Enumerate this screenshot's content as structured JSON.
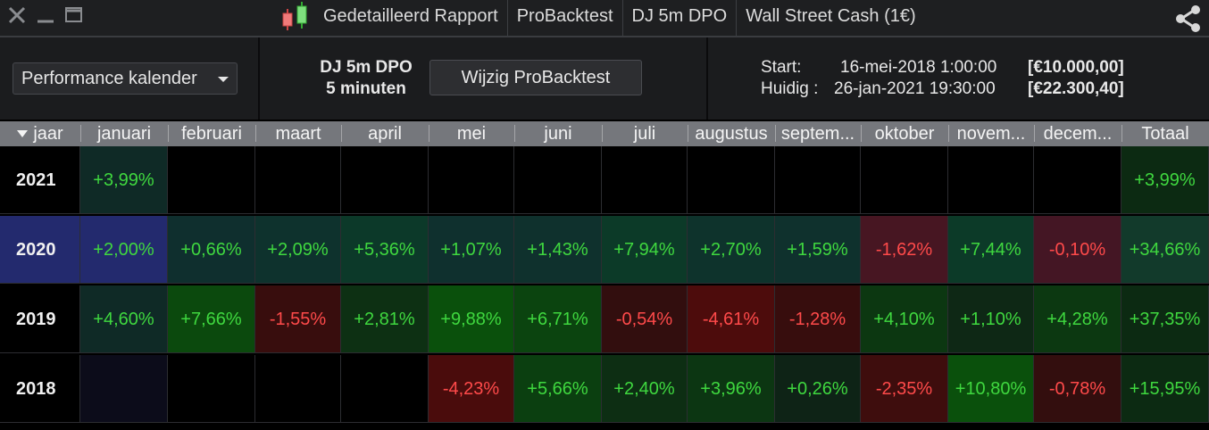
{
  "window": {
    "tabs": [
      "Gedetailleerd Rapport",
      "ProBacktest",
      "DJ 5m DPO",
      "Wall Street Cash (1€)"
    ]
  },
  "icons": {
    "close": "close-icon",
    "minimize": "minimize-icon",
    "maximize": "maximize-icon",
    "chart": "candlestick-icon",
    "share": "share-icon"
  },
  "toolbar": {
    "view_select": "Performance kalender",
    "strategy_name": "DJ 5m DPO",
    "timeframe": "5 minuten",
    "edit_button": "Wijzig ProBacktest",
    "start_label": "Start:",
    "start_date": "16-mei-2018 1:00:00",
    "start_value": "[€10.000,00]",
    "current_label": "Huidig :",
    "current_date": "26-jan-2021 19:30:00",
    "current_value": "[€22.300,40]"
  },
  "table": {
    "columns": [
      "jaar",
      "januari",
      "februari",
      "maart",
      "april",
      "mei",
      "juni",
      "juli",
      "augustus",
      "septem...",
      "oktober",
      "novem...",
      "decem...",
      "Totaal"
    ],
    "rows": [
      {
        "year": "2021",
        "values": [
          "+3,99%",
          "",
          "",
          "",
          "",
          "",
          "",
          "",
          "",
          "",
          "",
          ""
        ],
        "total": "+3,99%"
      },
      {
        "year": "2020",
        "values": [
          "+2,00%",
          "+0,66%",
          "+2,09%",
          "+5,36%",
          "+1,07%",
          "+1,43%",
          "+7,94%",
          "+2,70%",
          "+1,59%",
          "-1,62%",
          "+7,44%",
          "-0,10%"
        ],
        "total": "+34,66%"
      },
      {
        "year": "2019",
        "values": [
          "+4,60%",
          "+7,66%",
          "-1,55%",
          "+2,81%",
          "+9,88%",
          "+6,71%",
          "-0,54%",
          "-4,61%",
          "-1,28%",
          "+4,10%",
          "+1,10%",
          "+4,28%"
        ],
        "total": "+37,35%"
      },
      {
        "year": "2018",
        "values": [
          "",
          "",
          "",
          "",
          "-4,23%",
          "+5,66%",
          "+2,40%",
          "+3,96%",
          "+0,26%",
          "-2,35%",
          "+10,80%",
          "-0,78%"
        ],
        "total": "+15,95%"
      }
    ],
    "selected_row": "2020"
  },
  "colors": {
    "positive_text": "#3fd83f",
    "negative_text": "#ff4a4a",
    "selection": "#232a6e",
    "header": "#75777c"
  }
}
